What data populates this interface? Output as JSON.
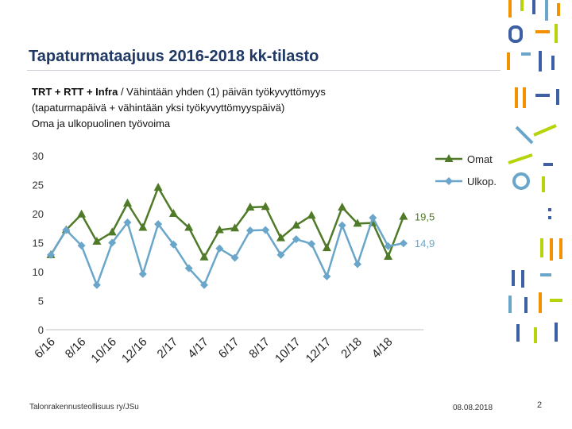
{
  "header": {
    "title": "Tapaturmataajuus 2016-2018 kk-tilasto",
    "subtitle_bold": "TRT + RTT + Infra",
    "subtitle_rest": " / Vähintään yhden (1) päivän työkyvyttömyys",
    "subtitle_line2": "(tapaturmapäivä + vähintään yksi työkyvyttömyyspäivä)",
    "subtitle_line3": "Oma ja ulkopuolinen työvoima"
  },
  "chart_data": {
    "type": "line",
    "title": "",
    "xlabel": "",
    "ylabel": "",
    "ylim": [
      0,
      30
    ],
    "yticks": [
      "0",
      "5",
      "10",
      "15",
      "20",
      "25",
      "30"
    ],
    "grid": false,
    "legend_position": "top-right",
    "categories": [
      "6/16",
      "7/16",
      "8/16",
      "9/16",
      "10/16",
      "11/16",
      "12/16",
      "1/17",
      "2/17",
      "3/17",
      "4/17",
      "5/17",
      "6/17",
      "7/17",
      "8/17",
      "9/17",
      "10/17",
      "11/17",
      "12/17",
      "1/18",
      "2/18",
      "3/18",
      "4/18",
      "5/18",
      "6/18"
    ],
    "x_tick_labels": [
      "6/16",
      "8/16",
      "10/16",
      "12/16",
      "2/17",
      "4/17",
      "6/17",
      "8/17",
      "10/17",
      "12/17",
      "2/18",
      "4/18"
    ],
    "series": [
      {
        "name": "Omat",
        "color": "#4f7a28",
        "marker": "triangle",
        "values": [
          12.9,
          17.2,
          19.9,
          15.2,
          16.8,
          21.8,
          17.6,
          24.5,
          20.0,
          17.6,
          12.5,
          17.2,
          17.5,
          21.1,
          21.2,
          15.8,
          18.0,
          19.7,
          14.1,
          21.1,
          18.3,
          18.4,
          12.6,
          19.5,
          null
        ],
        "end_label": "19,5"
      },
      {
        "name": "Ulkop.",
        "color": "#6aa6c9",
        "marker": "diamond",
        "values": [
          12.9,
          17.2,
          14.5,
          7.7,
          15.0,
          18.5,
          9.6,
          18.2,
          14.7,
          10.6,
          7.7,
          14.0,
          12.4,
          17.1,
          17.2,
          12.9,
          15.6,
          14.8,
          9.2,
          18.0,
          11.3,
          19.3,
          14.4,
          14.9,
          null
        ],
        "end_label": "14,9"
      }
    ]
  },
  "footer": {
    "organization": "Talonrakennusteollisuus ry/JSu",
    "date": "08.08.2018",
    "page": "2"
  }
}
